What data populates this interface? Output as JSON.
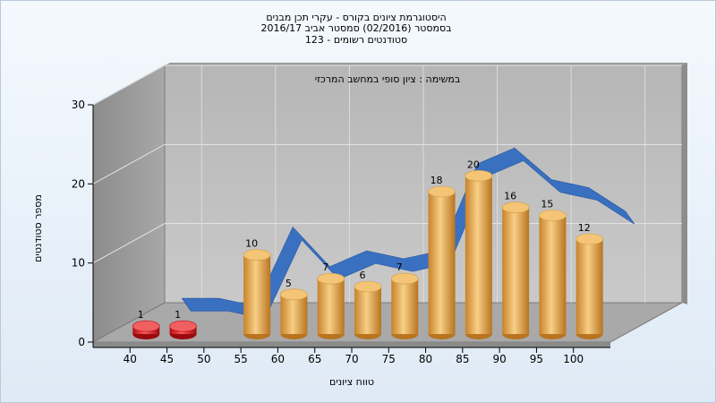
{
  "chart_data": {
    "type": "bar",
    "title_lines": [
      "היסטוגרמת ציונים בקורס - עקרי תכן מבנים",
      "בסמסטר  (02/2016)  סמסטר אביב 2016/17",
      "סטודנטים רשומים - 123"
    ],
    "subtitle": "במשימה : ציון סופי במחשב המרכזי",
    "xlabel": "טווח ציונים",
    "ylabel": "מספר סטודנטים",
    "categories": [
      "40",
      "45",
      "50",
      "55",
      "60",
      "65",
      "70",
      "75",
      "80",
      "85",
      "90",
      "95",
      "100"
    ],
    "values": [
      1,
      1,
      0,
      10,
      5,
      7,
      6,
      7,
      18,
      20,
      16,
      15,
      12
    ],
    "bar_colors": [
      "#e31e24",
      "#e31e24",
      "#e8a848",
      "#e8a848",
      "#e8a848",
      "#e8a848",
      "#e8a848",
      "#e8a848",
      "#e8a848",
      "#e8a848",
      "#e8a848",
      "#e8a848",
      "#e8a848"
    ],
    "trend_color": "#3a70c0",
    "yticks": [
      0,
      10,
      20,
      30
    ],
    "ylim": [
      0,
      30
    ],
    "grid": true
  }
}
